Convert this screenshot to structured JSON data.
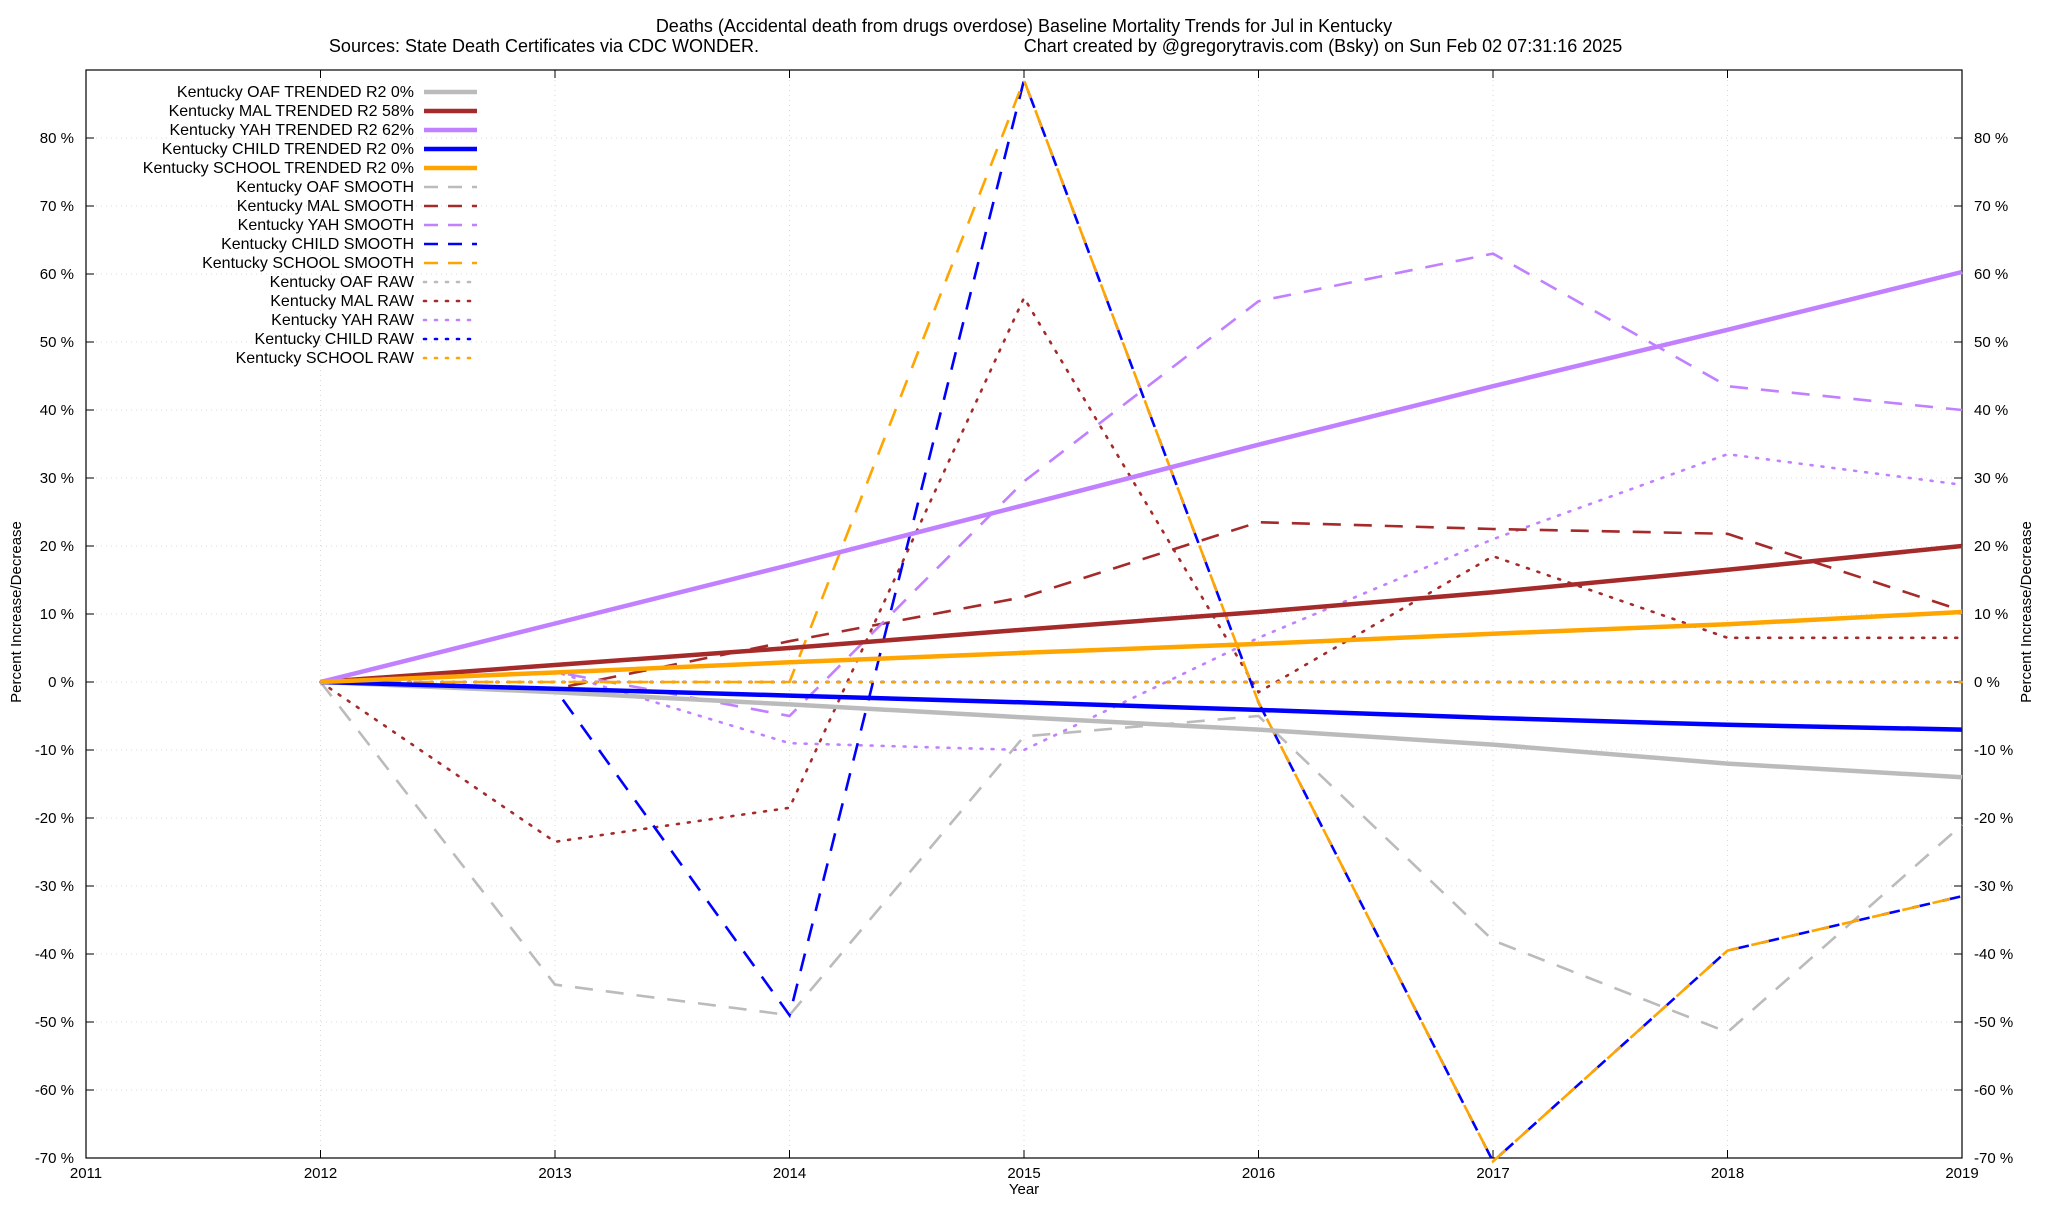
{
  "chart_data": {
    "type": "line",
    "title": "Deaths (Accidental death from drugs overdose)  Baseline Mortality Trends for Jul in Kentucky",
    "subtitle_left": "Sources: State Death Certificates via CDC WONDER.",
    "subtitle_right": "Chart created by @gregorytravis.com (Bsky) on Sun Feb 02 07:31:16 2025",
    "xlabel": "Year",
    "ylabel_left": "Percent Increase/Decrease",
    "ylabel_right": "Percent Increase/Decrease",
    "xlim": [
      2011,
      2019
    ],
    "ylim": [
      -70,
      90
    ],
    "x_ticks": [
      2011,
      2012,
      2013,
      2014,
      2015,
      2016,
      2017,
      2018,
      2019
    ],
    "x_tick_labels": [
      "2011",
      "2012",
      "2013",
      "2014",
      "2015",
      "2016",
      "2017",
      "2018",
      "2019"
    ],
    "y_ticks": [
      -70,
      -60,
      -50,
      -40,
      -30,
      -20,
      -10,
      0,
      10,
      20,
      30,
      40,
      50,
      60,
      70,
      80
    ],
    "y_tick_labels": [
      "-70 %",
      "-60 %",
      "-50 %",
      "-40 %",
      "-30 %",
      "-20 %",
      "-10 %",
      "0 %",
      "10 %",
      "20 %",
      "30 %",
      "40 %",
      "50 %",
      "60 %",
      "70 %",
      "80 %"
    ],
    "grid": true,
    "legend_position": "top-left",
    "colors": {
      "oaf": "#bbbbbb",
      "mal": "#a52a2a",
      "yah": "#c080ff",
      "child": "#0000ff",
      "school": "#ffa500",
      "grid": "#d8d8d8"
    },
    "series": [
      {
        "name": "Kentucky OAF TRENDED R2   0%",
        "group": "oaf",
        "style": "trend",
        "x": [
          2012,
          2013,
          2014,
          2015,
          2016,
          2017,
          2018,
          2019
        ],
        "y": [
          0,
          -1.5,
          -3.3,
          -5.2,
          -7.0,
          -9.2,
          -12.0,
          -14.0
        ]
      },
      {
        "name": "Kentucky MAL TRENDED R2  58%",
        "group": "mal",
        "style": "trend",
        "x": [
          2012,
          2013,
          2014,
          2015,
          2016,
          2017,
          2018,
          2019
        ],
        "y": [
          0,
          2.5,
          5.0,
          7.7,
          10.3,
          13.2,
          16.5,
          20.0
        ]
      },
      {
        "name": "Kentucky YAH TRENDED R2  62%",
        "group": "yah",
        "style": "trend",
        "x": [
          2012,
          2013,
          2014,
          2015,
          2016,
          2017,
          2018,
          2019
        ],
        "y": [
          0,
          8.6,
          17.2,
          26.0,
          34.9,
          43.5,
          51.8,
          60.3
        ]
      },
      {
        "name": "Kentucky CHILD TRENDED R2   0%",
        "group": "child",
        "style": "trend",
        "x": [
          2012,
          2013,
          2014,
          2015,
          2016,
          2017,
          2018,
          2019
        ],
        "y": [
          0,
          -1.0,
          -2.0,
          -3.0,
          -4.1,
          -5.3,
          -6.3,
          -7.0
        ]
      },
      {
        "name": "Kentucky SCHOOL TRENDED R2   0%",
        "group": "school",
        "style": "trend",
        "x": [
          2012,
          2013,
          2014,
          2015,
          2016,
          2017,
          2018,
          2019
        ],
        "y": [
          0,
          1.4,
          2.9,
          4.3,
          5.6,
          7.1,
          8.5,
          10.3
        ]
      },
      {
        "name": "Kentucky OAF SMOOTH",
        "group": "oaf",
        "style": "smooth",
        "x": [
          2012,
          2013,
          2014,
          2015,
          2016,
          2017,
          2018,
          2019
        ],
        "y": [
          0,
          -44.5,
          -49,
          -8,
          -5,
          -38,
          -51.5,
          -21
        ]
      },
      {
        "name": "Kentucky MAL SMOOTH",
        "group": "mal",
        "style": "smooth",
        "x": [
          2012,
          2013,
          2014,
          2015,
          2016,
          2017,
          2018,
          2019
        ],
        "y": [
          0,
          -1,
          6,
          12.5,
          23.5,
          22.5,
          21.8,
          10.5
        ]
      },
      {
        "name": "Kentucky YAH SMOOTH",
        "group": "yah",
        "style": "smooth",
        "x": [
          2012,
          2013,
          2014,
          2015,
          2016,
          2017,
          2018,
          2019
        ],
        "y": [
          0,
          1.5,
          -5,
          29.5,
          56,
          63,
          43.5,
          40
        ]
      },
      {
        "name": "Kentucky CHILD SMOOTH",
        "group": "child",
        "style": "smooth",
        "x": [
          2012,
          2013,
          2014,
          2015,
          2016,
          2017,
          2018,
          2019
        ],
        "y": [
          0,
          -1,
          -49,
          88.5,
          -3,
          -70.5,
          -39.5,
          -31.5
        ]
      },
      {
        "name": "Kentucky SCHOOL SMOOTH",
        "group": "school",
        "style": "smooth",
        "x": [
          2012,
          2013,
          2014,
          2015,
          2016,
          2017,
          2018,
          2019
        ],
        "y": [
          0,
          0,
          0,
          88.5,
          -3,
          -70.5,
          -39.5,
          -31.5
        ]
      },
      {
        "name": "Kentucky OAF RAW",
        "group": "oaf",
        "style": "raw",
        "x": [
          2012,
          2013,
          2014,
          2015,
          2016,
          2017,
          2018,
          2019
        ],
        "y": [
          0,
          0,
          0,
          0,
          0,
          0,
          0,
          0
        ]
      },
      {
        "name": "Kentucky MAL RAW",
        "group": "mal",
        "style": "raw",
        "x": [
          2012,
          2013,
          2014,
          2015,
          2016,
          2017,
          2018,
          2019
        ],
        "y": [
          0,
          -23.5,
          -18.5,
          56.5,
          -1.5,
          18.5,
          6.5,
          6.5
        ]
      },
      {
        "name": "Kentucky YAH RAW",
        "group": "yah",
        "style": "raw",
        "x": [
          2012,
          2013,
          2014,
          2015,
          2016,
          2017,
          2018,
          2019
        ],
        "y": [
          0,
          1.5,
          -9,
          -10,
          6.5,
          21,
          33.5,
          29
        ]
      },
      {
        "name": "Kentucky CHILD RAW",
        "group": "child",
        "style": "raw",
        "x": [
          2012,
          2013,
          2014,
          2015,
          2016,
          2017,
          2018,
          2019
        ],
        "y": [
          0,
          0,
          0,
          0,
          0,
          0,
          0,
          0
        ]
      },
      {
        "name": "Kentucky SCHOOL RAW",
        "group": "school",
        "style": "raw",
        "x": [
          2012,
          2013,
          2014,
          2015,
          2016,
          2017,
          2018,
          2019
        ],
        "y": [
          0,
          0,
          0,
          0,
          0,
          0,
          0,
          0
        ]
      }
    ]
  }
}
